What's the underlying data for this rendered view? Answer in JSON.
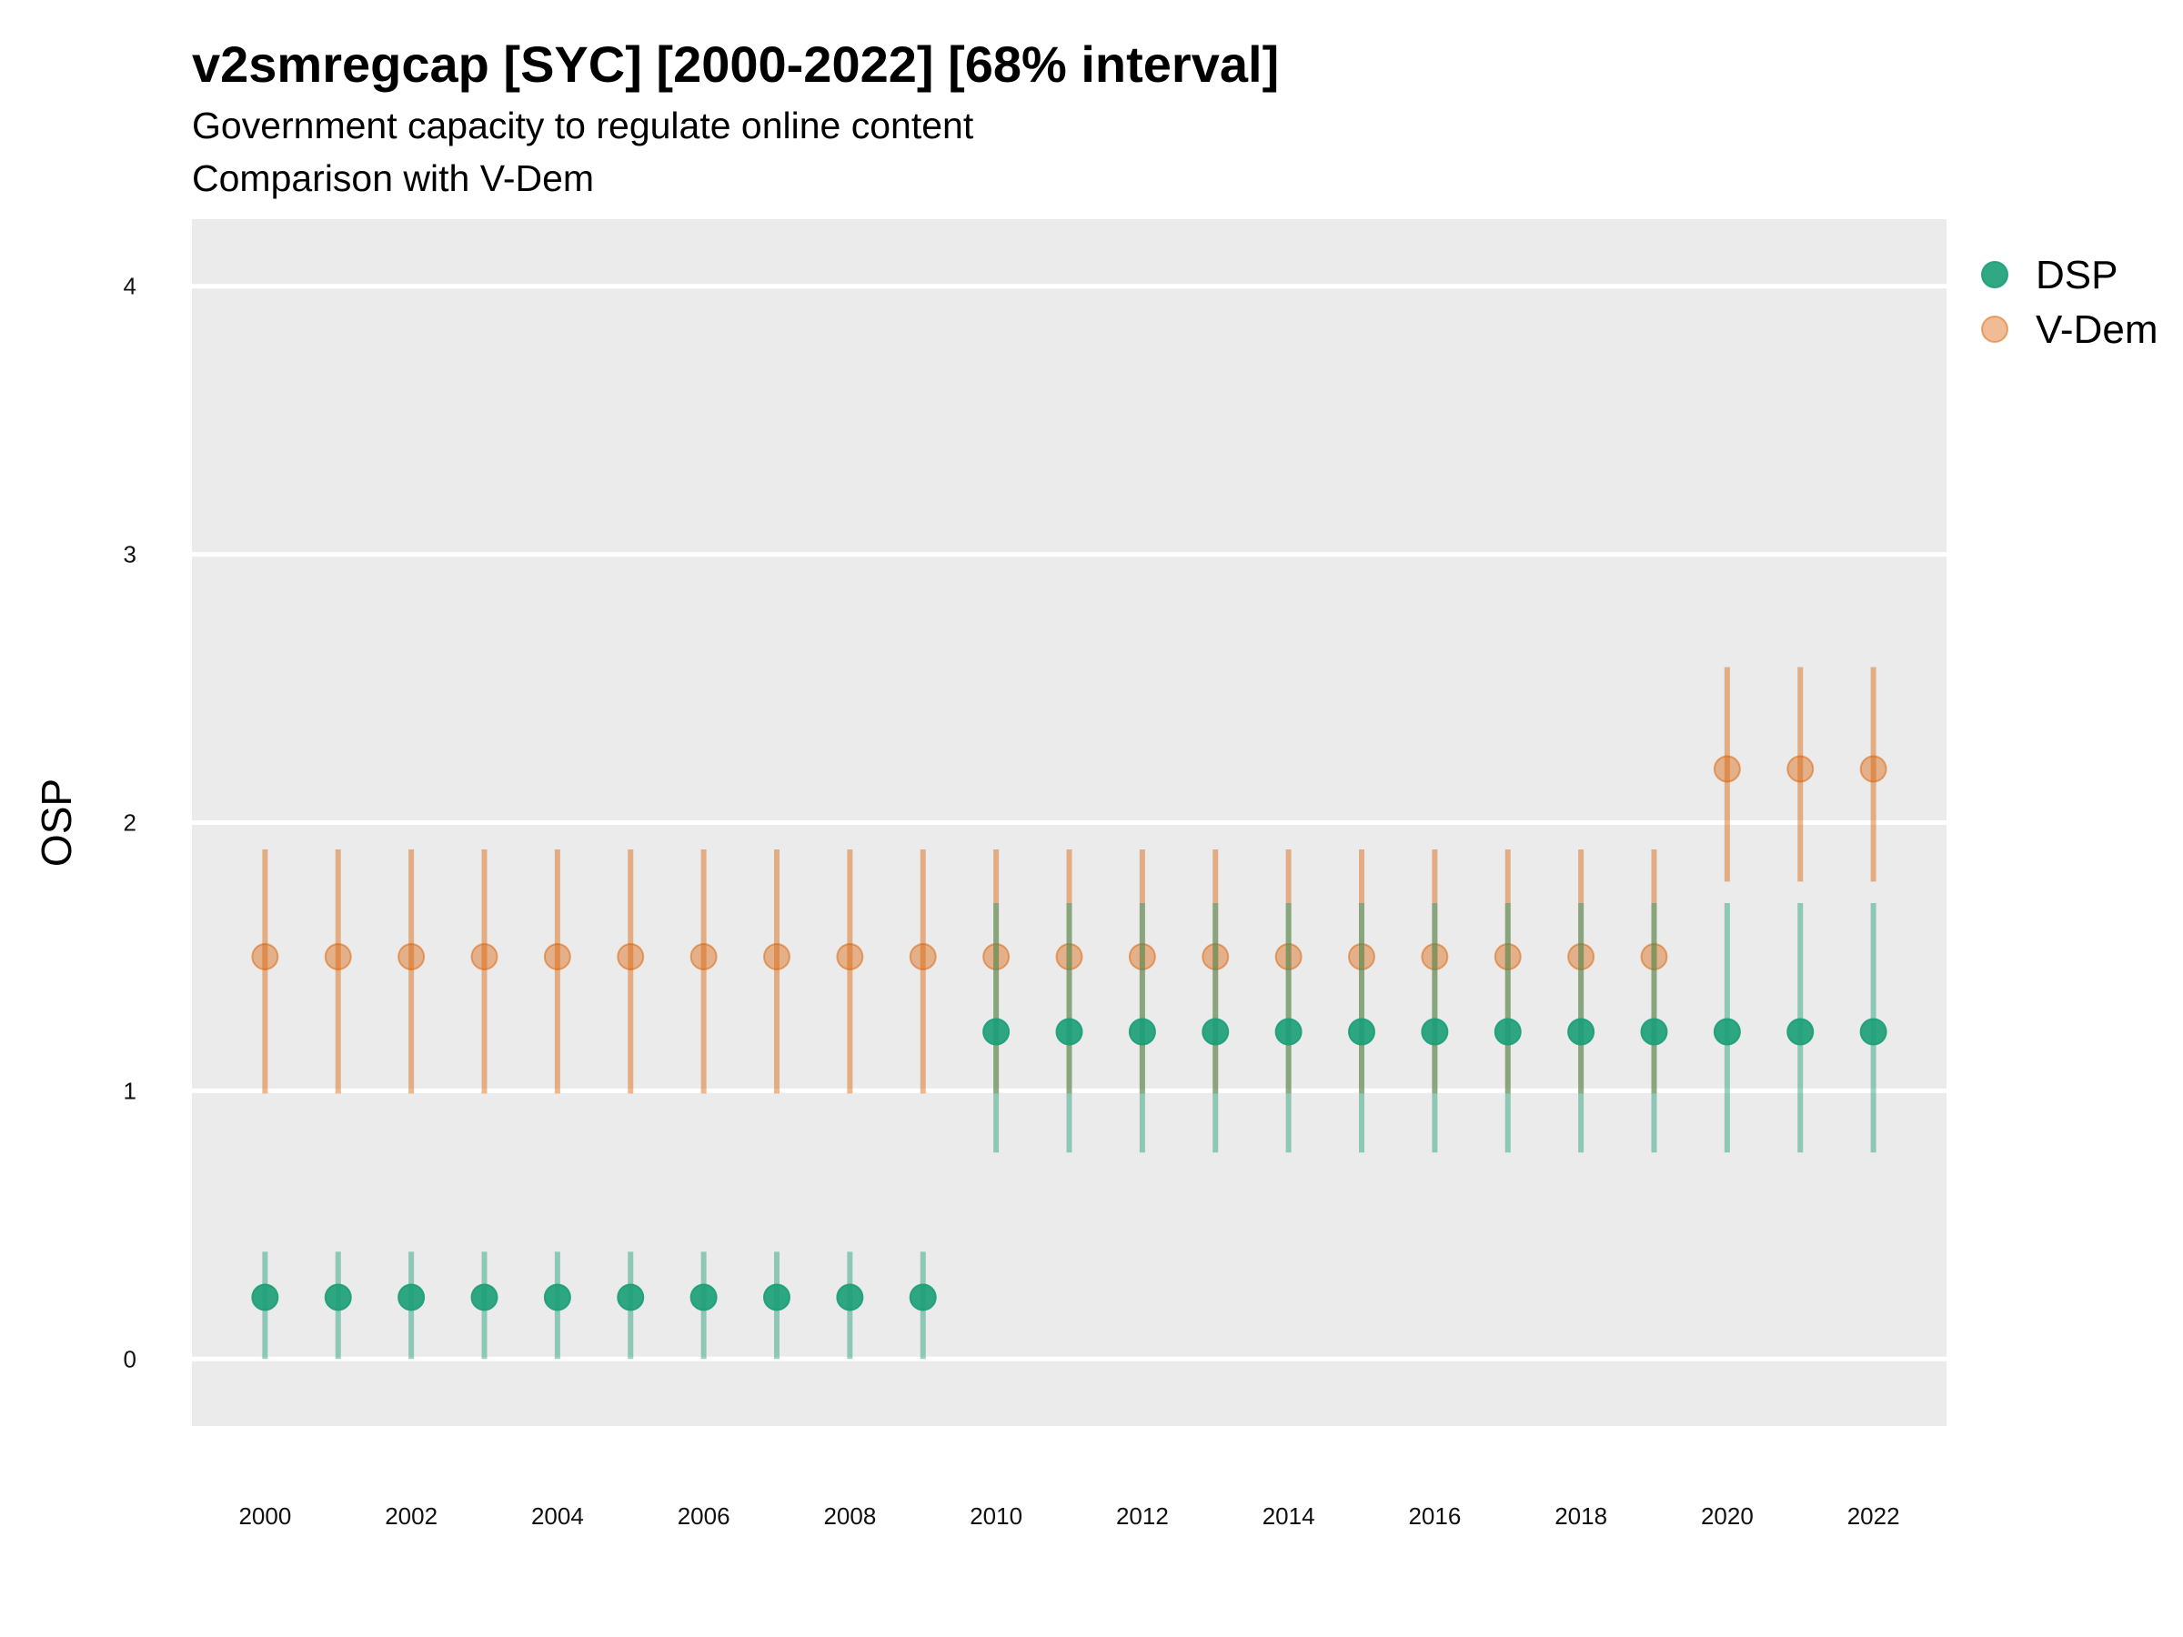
{
  "chart_data": {
    "type": "scatter",
    "title": "v2smregcap [SYC] [2000-2022] [68% interval]",
    "subtitle": [
      "Government capacity to regulate online content",
      "Comparison with V-Dem"
    ],
    "xlabel": "",
    "ylabel": "OSP",
    "x": [
      2000,
      2001,
      2002,
      2003,
      2004,
      2005,
      2006,
      2007,
      2008,
      2009,
      2010,
      2011,
      2012,
      2013,
      2014,
      2015,
      2016,
      2017,
      2018,
      2019,
      2020,
      2021,
      2022
    ],
    "x_ticks": [
      "2000",
      "2002",
      "2004",
      "2006",
      "2008",
      "2010",
      "2012",
      "2014",
      "2016",
      "2018",
      "2020",
      "2022"
    ],
    "y_ticks": [
      "0",
      "1",
      "2",
      "3",
      "4"
    ],
    "ylim": [
      -0.25,
      4.25
    ],
    "grid": true,
    "legend_position": "right",
    "series": [
      {
        "name": "DSP",
        "color": "#1b9e77",
        "values": [
          0.23,
          0.23,
          0.23,
          0.23,
          0.23,
          0.23,
          0.23,
          0.23,
          0.23,
          0.23,
          1.22,
          1.22,
          1.22,
          1.22,
          1.22,
          1.22,
          1.22,
          1.22,
          1.22,
          1.22,
          1.22,
          1.22,
          1.22
        ],
        "lower": [
          0.0,
          0.0,
          0.0,
          0.0,
          0.0,
          0.0,
          0.0,
          0.0,
          0.0,
          0.0,
          0.77,
          0.77,
          0.77,
          0.77,
          0.77,
          0.77,
          0.77,
          0.77,
          0.77,
          0.77,
          0.77,
          0.77,
          0.77
        ],
        "upper": [
          0.4,
          0.4,
          0.4,
          0.4,
          0.4,
          0.4,
          0.4,
          0.4,
          0.4,
          0.4,
          1.7,
          1.7,
          1.7,
          1.7,
          1.7,
          1.7,
          1.7,
          1.7,
          1.7,
          1.7,
          1.7,
          1.7,
          1.7
        ]
      },
      {
        "name": "V-Dem",
        "color": "#d95f02",
        "values": [
          1.5,
          1.5,
          1.5,
          1.5,
          1.5,
          1.5,
          1.5,
          1.5,
          1.5,
          1.5,
          1.5,
          1.5,
          1.5,
          1.5,
          1.5,
          1.5,
          1.5,
          1.5,
          1.5,
          1.5,
          2.2,
          2.2,
          2.2
        ],
        "lower": [
          0.99,
          0.99,
          0.99,
          0.99,
          0.99,
          0.99,
          0.99,
          0.99,
          0.99,
          0.99,
          0.99,
          0.99,
          0.99,
          0.99,
          0.99,
          0.99,
          0.99,
          0.99,
          0.99,
          0.99,
          1.78,
          1.78,
          1.78
        ],
        "upper": [
          1.9,
          1.9,
          1.9,
          1.9,
          1.9,
          1.9,
          1.9,
          1.9,
          1.9,
          1.9,
          1.9,
          1.9,
          1.9,
          1.9,
          1.9,
          1.9,
          1.9,
          1.9,
          1.9,
          1.9,
          2.58,
          2.58,
          2.58
        ]
      }
    ]
  }
}
